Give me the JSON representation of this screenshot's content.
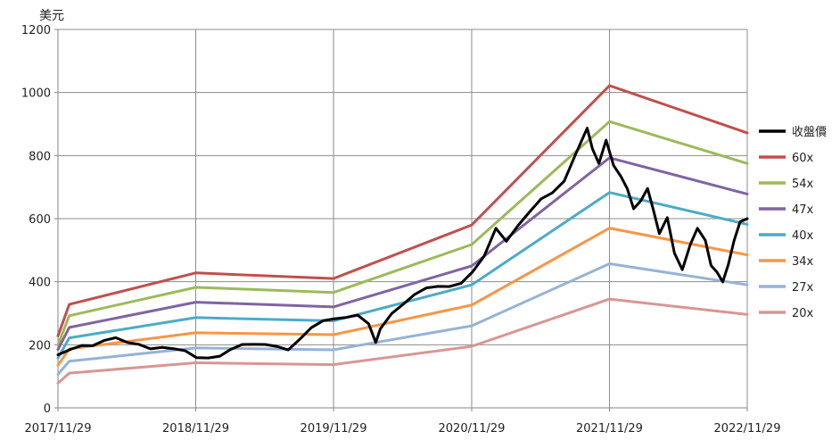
{
  "chart_data": {
    "type": "line",
    "ylabel": "美元",
    "ylim": [
      0,
      1200
    ],
    "yticks": [
      0,
      200,
      400,
      600,
      800,
      1000,
      1200
    ],
    "xlim": [
      "2017-11-29",
      "2022-11-29"
    ],
    "xticks": [
      "2017/11/29",
      "2018/11/29",
      "2019/11/29",
      "2020/11/29",
      "2021/11/29",
      "2022/11/29"
    ],
    "grid": true,
    "legend_position": "right",
    "series": [
      {
        "name": "收盤價",
        "color": "#000000",
        "points": [
          [
            "2017-11-29",
            168
          ],
          [
            "2018-01-01",
            195
          ],
          [
            "2018-02-01",
            208
          ],
          [
            "2018-03-01",
            198
          ],
          [
            "2018-04-01",
            205
          ],
          [
            "2018-05-01",
            212
          ],
          [
            "2018-06-01",
            205
          ],
          [
            "2018-07-01",
            210
          ],
          [
            "2018-08-01",
            198
          ],
          [
            "2018-09-01",
            195
          ],
          [
            "2018-10-01",
            180
          ],
          [
            "2018-11-01",
            170
          ],
          [
            "2018-12-01",
            155
          ],
          [
            "2019-01-01",
            165
          ],
          [
            "2019-02-01",
            175
          ],
          [
            "2019-03-01",
            190
          ],
          [
            "2019-04-01",
            195
          ],
          [
            "2019-05-01",
            190
          ],
          [
            "2019-06-01",
            195
          ],
          [
            "2019-07-01",
            200
          ],
          [
            "2019-08-01",
            195
          ],
          [
            "2019-09-01",
            225
          ],
          [
            "2019-10-01",
            250
          ],
          [
            "2019-11-01",
            265
          ],
          [
            "2019-12-01",
            275
          ],
          [
            "2020-01-01",
            290
          ],
          [
            "2020-02-01",
            305
          ],
          [
            "2020-03-01",
            275
          ],
          [
            "2020-03-20",
            205
          ],
          [
            "2020-04-01",
            240
          ],
          [
            "2020-05-01",
            290
          ],
          [
            "2020-06-01",
            330
          ],
          [
            "2020-07-01",
            370
          ],
          [
            "2020-08-01",
            390
          ],
          [
            "2020-09-01",
            385
          ],
          [
            "2020-10-01",
            375
          ],
          [
            "2020-11-01",
            385
          ],
          [
            "2020-12-01",
            430
          ],
          [
            "2021-01-01",
            490
          ],
          [
            "2021-02-01",
            580
          ],
          [
            "2021-03-01",
            530
          ],
          [
            "2021-04-01",
            570
          ],
          [
            "2021-05-01",
            610
          ],
          [
            "2021-06-01",
            660
          ],
          [
            "2021-07-01",
            690
          ],
          [
            "2021-08-01",
            730
          ],
          [
            "2021-09-01",
            810
          ],
          [
            "2021-10-01",
            880
          ],
          [
            "2021-10-15",
            810
          ],
          [
            "2021-11-01",
            770
          ],
          [
            "2021-11-20",
            855
          ],
          [
            "2021-12-10",
            780
          ],
          [
            "2021-12-29",
            740
          ],
          [
            "2022-01-15",
            690
          ],
          [
            "2022-02-01",
            620
          ],
          [
            "2022-02-20",
            650
          ],
          [
            "2022-03-10",
            700
          ],
          [
            "2022-03-25",
            640
          ],
          [
            "2022-04-10",
            560
          ],
          [
            "2022-05-01",
            600
          ],
          [
            "2022-05-20",
            480
          ],
          [
            "2022-06-10",
            430
          ],
          [
            "2022-07-01",
            520
          ],
          [
            "2022-07-20",
            580
          ],
          [
            "2022-08-10",
            540
          ],
          [
            "2022-08-25",
            450
          ],
          [
            "2022-09-10",
            420
          ],
          [
            "2022-09-25",
            390
          ],
          [
            "2022-10-10",
            455
          ],
          [
            "2022-10-25",
            540
          ],
          [
            "2022-11-10",
            600
          ],
          [
            "2022-11-29",
            600
          ]
        ]
      },
      {
        "name": "60x",
        "color": "#c0504d",
        "points": [
          [
            "2017-11-29",
            228
          ],
          [
            "2017-12-29",
            328
          ],
          [
            "2018-11-29",
            428
          ],
          [
            "2019-11-29",
            410
          ],
          [
            "2020-11-29",
            580
          ],
          [
            "2021-11-29",
            1022
          ],
          [
            "2022-11-29",
            872
          ]
        ]
      },
      {
        "name": "54x",
        "color": "#9bbb59",
        "points": [
          [
            "2017-11-29",
            200
          ],
          [
            "2017-12-29",
            292
          ],
          [
            "2018-11-29",
            382
          ],
          [
            "2019-11-29",
            366
          ],
          [
            "2020-11-29",
            518
          ],
          [
            "2021-11-29",
            908
          ],
          [
            "2022-11-29",
            775
          ]
        ]
      },
      {
        "name": "47x",
        "color": "#8064a2",
        "points": [
          [
            "2017-11-29",
            185
          ],
          [
            "2017-12-29",
            255
          ],
          [
            "2018-11-29",
            335
          ],
          [
            "2019-11-29",
            320
          ],
          [
            "2020-11-29",
            450
          ],
          [
            "2021-11-29",
            793
          ],
          [
            "2022-11-29",
            678
          ]
        ]
      },
      {
        "name": "40x",
        "color": "#4bacc6",
        "points": [
          [
            "2017-11-29",
            158
          ],
          [
            "2017-12-29",
            222
          ],
          [
            "2018-11-29",
            286
          ],
          [
            "2019-11-29",
            276
          ],
          [
            "2020-11-29",
            390
          ],
          [
            "2021-11-29",
            683
          ],
          [
            "2022-11-29",
            582
          ]
        ]
      },
      {
        "name": "34x",
        "color": "#f79646",
        "points": [
          [
            "2017-11-29",
            135
          ],
          [
            "2017-12-29",
            187
          ],
          [
            "2018-11-29",
            238
          ],
          [
            "2019-11-29",
            232
          ],
          [
            "2020-11-29",
            326
          ],
          [
            "2021-11-29",
            570
          ],
          [
            "2022-11-29",
            485
          ]
        ]
      },
      {
        "name": "27x",
        "color": "#95b3d7",
        "points": [
          [
            "2017-11-29",
            106
          ],
          [
            "2017-12-29",
            148
          ],
          [
            "2018-11-29",
            190
          ],
          [
            "2019-11-29",
            184
          ],
          [
            "2020-11-29",
            260
          ],
          [
            "2021-11-29",
            457
          ],
          [
            "2022-11-29",
            390
          ]
        ]
      },
      {
        "name": "20x",
        "color": "#d99694",
        "points": [
          [
            "2017-11-29",
            78
          ],
          [
            "2017-12-29",
            110
          ],
          [
            "2018-11-29",
            143
          ],
          [
            "2019-11-29",
            137
          ],
          [
            "2020-11-29",
            195
          ],
          [
            "2021-11-29",
            345
          ],
          [
            "2022-11-29",
            296
          ]
        ]
      }
    ]
  }
}
